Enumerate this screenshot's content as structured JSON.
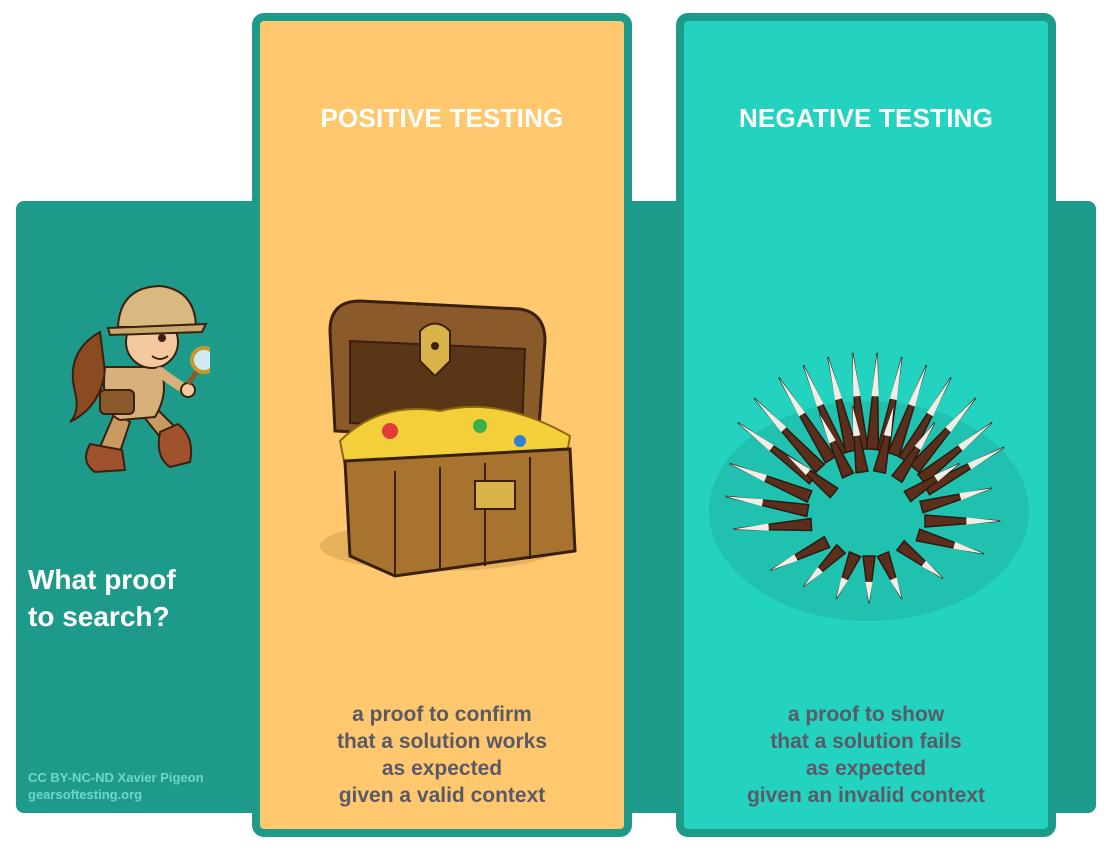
{
  "left_panel": {
    "question_lines": [
      "What proof",
      "to search?"
    ],
    "credit_lines": [
      "CC BY-NC-ND  Xavier Pigeon",
      "gearsoftesting.org"
    ]
  },
  "positive": {
    "title": "POSITIVE TESTING",
    "description_lines": [
      "a proof to confirm",
      "that a solution works",
      "as expected",
      "given a valid context"
    ]
  },
  "negative": {
    "title": "NEGATIVE TESTING",
    "description_lines": [
      "a proof to show",
      "that a solution fails",
      "as expected",
      "given an invalid context"
    ]
  },
  "colors": {
    "band": "#1d9a8a",
    "positive_bg": "#ffc86e",
    "negative_bg": "#24d2c0",
    "title_text": "#ffffff",
    "body_text": "#5a5a66"
  }
}
